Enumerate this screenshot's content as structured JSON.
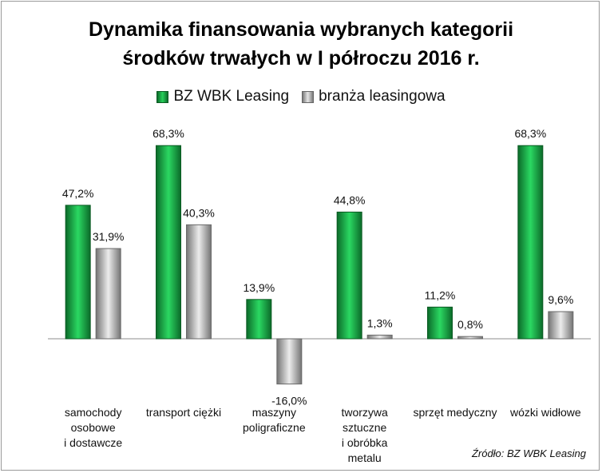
{
  "chart_data": {
    "type": "bar",
    "title_line1": "Dynamika finansowania wybranych kategorii",
    "title_line2": "środków trwałych w I półroczu 2016 r.",
    "categories": [
      [
        "samochody",
        "osobowe",
        "i dostawcze"
      ],
      [
        "transport ciężki"
      ],
      [
        "maszyny",
        "poligraficzne"
      ],
      [
        "tworzywa",
        "sztuczne",
        "i obróbka",
        "metalu"
      ],
      [
        "sprzęt medyczny"
      ],
      [
        "wózki widłowe"
      ]
    ],
    "series": [
      {
        "name": "BZ WBK Leasing",
        "values": [
          47.2,
          68.3,
          13.9,
          44.8,
          11.2,
          68.3
        ],
        "labels": [
          "47,2%",
          "68,3%",
          "13,9%",
          "44,8%",
          "11,2%",
          "68,3%"
        ],
        "color": "#1aa845"
      },
      {
        "name": "branża leasingowa",
        "values": [
          31.9,
          40.3,
          -16.0,
          1.3,
          0.8,
          9.6
        ],
        "labels": [
          "31,9%",
          "40,3%",
          "-16,0%",
          "1,3%",
          "0,8%",
          "9,6%"
        ],
        "color": "#b5b5b5"
      }
    ],
    "ylim": [
      -20,
      75
    ],
    "grid": false,
    "legend_position": "top",
    "source": "Źródło: BZ WBK Leasing"
  }
}
